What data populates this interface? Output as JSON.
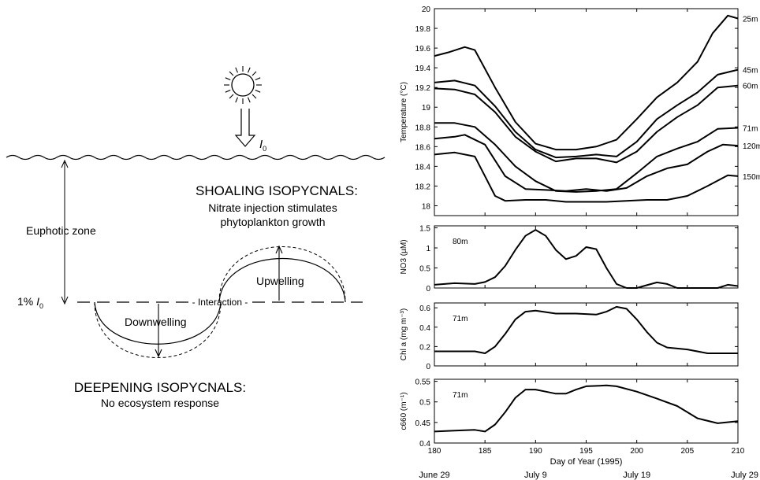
{
  "diagram": {
    "irradiance_symbol": "I",
    "irradiance_sub": "0",
    "euphotic_label": "Euphotic zone",
    "onepct_prefix": "1% ",
    "onepct_symbol": "I",
    "onepct_sub": "0",
    "shoaling_title": "SHOALING ISOPYCNALS:",
    "shoaling_line1": "Nitrate injection stimulates",
    "shoaling_line2": "phytoplankton growth",
    "upwelling": "Upwelling",
    "interaction": "Interaction",
    "downwelling": "Downwelling",
    "deepening_title": "DEEPENING ISOPYCNALS:",
    "deepening_line1": "No ecosystem response"
  },
  "chart_data": [
    {
      "type": "line",
      "ylabel": "Temperature (°C)",
      "ylim": [
        17.9,
        20.0
      ],
      "yticks": [
        "18",
        "18.2",
        "18.4",
        "18.6",
        "18.8",
        "19",
        "19.2",
        "19.4",
        "19.6",
        "19.8",
        "20"
      ],
      "xlim": [
        180,
        210
      ],
      "series": [
        {
          "name": "25m",
          "x": [
            180,
            181.5,
            183,
            184,
            186,
            188,
            190,
            192,
            194,
            196,
            198,
            200,
            202,
            204,
            206,
            207.5,
            209,
            210
          ],
          "y": [
            19.52,
            19.56,
            19.61,
            19.58,
            19.2,
            18.85,
            18.63,
            18.57,
            18.57,
            18.6,
            18.67,
            18.88,
            19.1,
            19.25,
            19.46,
            19.75,
            19.93,
            19.9
          ]
        },
        {
          "name": "45m",
          "x": [
            180,
            182,
            184,
            186,
            188,
            190,
            192,
            194,
            196,
            198,
            200,
            202,
            204,
            206,
            208,
            210
          ],
          "y": [
            19.25,
            19.27,
            19.22,
            19.01,
            18.75,
            18.57,
            18.49,
            18.5,
            18.52,
            18.5,
            18.65,
            18.88,
            19.02,
            19.15,
            19.33,
            19.38
          ]
        },
        {
          "name": "60m",
          "x": [
            180,
            182,
            184,
            186,
            188,
            190,
            192,
            194,
            196,
            198,
            200,
            202,
            204,
            206,
            208,
            210
          ],
          "y": [
            19.19,
            19.18,
            19.13,
            18.95,
            18.7,
            18.55,
            18.45,
            18.48,
            18.48,
            18.44,
            18.55,
            18.75,
            18.9,
            19.02,
            19.2,
            19.22
          ]
        },
        {
          "name": "71m",
          "x": [
            180,
            182,
            184,
            186,
            188,
            190,
            192,
            194,
            196,
            198,
            200,
            202,
            204,
            206,
            208,
            210
          ],
          "y": [
            18.84,
            18.84,
            18.8,
            18.62,
            18.4,
            18.25,
            18.15,
            18.14,
            18.15,
            18.17,
            18.33,
            18.5,
            18.58,
            18.65,
            18.78,
            18.79
          ]
        },
        {
          "name": "120m",
          "x": [
            180,
            182,
            183,
            185,
            187,
            189,
            191,
            193,
            195,
            197,
            199,
            201,
            203,
            205,
            207,
            208.5,
            210
          ],
          "y": [
            18.68,
            18.7,
            18.72,
            18.62,
            18.3,
            18.17,
            18.16,
            18.15,
            18.17,
            18.15,
            18.18,
            18.3,
            18.38,
            18.42,
            18.55,
            18.62,
            18.61
          ]
        },
        {
          "name": "150m",
          "x": [
            180,
            182,
            184,
            185,
            186,
            187,
            189,
            191,
            193,
            195,
            197,
            199,
            201,
            203,
            205,
            207,
            209,
            210
          ],
          "y": [
            18.52,
            18.54,
            18.5,
            18.3,
            18.1,
            18.05,
            18.06,
            18.06,
            18.04,
            18.04,
            18.04,
            18.05,
            18.06,
            18.06,
            18.1,
            18.2,
            18.31,
            18.3
          ]
        }
      ]
    },
    {
      "type": "line",
      "ylabel": "NO3 (µM)",
      "annotation": "80m",
      "ylim": [
        0,
        1.55
      ],
      "yticks": [
        "0",
        "0.5",
        "1",
        "1.5"
      ],
      "xlim": [
        180,
        210
      ],
      "series": [
        {
          "name": "80m",
          "x": [
            180,
            182,
            184,
            185,
            186,
            187,
            188,
            189,
            190,
            191,
            192,
            193,
            194,
            195,
            196,
            197,
            198,
            199,
            200,
            201,
            202,
            203,
            204,
            205,
            206,
            207,
            208,
            209,
            210
          ],
          "y": [
            0.08,
            0.12,
            0.1,
            0.15,
            0.27,
            0.55,
            0.95,
            1.3,
            1.45,
            1.3,
            0.95,
            0.72,
            0.8,
            1.02,
            0.97,
            0.5,
            0.1,
            0.0,
            0.0,
            0.07,
            0.14,
            0.1,
            0.0,
            0.0,
            0.0,
            0.0,
            0.0,
            0.08,
            0.05
          ]
        }
      ]
    },
    {
      "type": "line",
      "ylabel": "Chl a (mg m⁻³)",
      "annotation": "71m",
      "ylim": [
        0,
        0.65
      ],
      "yticks": [
        "0",
        "0.2",
        "0.4",
        "0.6"
      ],
      "xlim": [
        180,
        210
      ],
      "series": [
        {
          "name": "71m",
          "x": [
            180,
            182,
            184,
            185,
            186,
            187,
            188,
            189,
            190,
            192,
            194,
            196,
            197,
            198,
            199,
            200,
            201,
            202,
            203,
            205,
            207,
            210
          ],
          "y": [
            0.15,
            0.15,
            0.15,
            0.13,
            0.2,
            0.33,
            0.48,
            0.56,
            0.57,
            0.54,
            0.54,
            0.53,
            0.56,
            0.61,
            0.59,
            0.48,
            0.35,
            0.24,
            0.19,
            0.17,
            0.13,
            0.13
          ]
        }
      ]
    },
    {
      "type": "line",
      "ylabel": "c660 (m⁻¹)",
      "annotation": "71m",
      "ylim": [
        0.4,
        0.555
      ],
      "yticks": [
        "0.4",
        "0.45",
        "0.5",
        "0.55"
      ],
      "xlim": [
        180,
        210
      ],
      "xticks": [
        "180",
        "185",
        "190",
        "195",
        "200",
        "205",
        "210"
      ],
      "xlabel": "Day of Year (1995)",
      "date_ticks": [
        "June 29",
        "July 9",
        "July 19",
        "July 29"
      ],
      "series": [
        {
          "name": "71m",
          "x": [
            180,
            182,
            184,
            185,
            186,
            187,
            188,
            189,
            190,
            191,
            192,
            193,
            194,
            195,
            197,
            198,
            200,
            202,
            204,
            206,
            208,
            210
          ],
          "y": [
            0.428,
            0.43,
            0.432,
            0.428,
            0.445,
            0.475,
            0.51,
            0.53,
            0.53,
            0.525,
            0.52,
            0.52,
            0.53,
            0.538,
            0.54,
            0.538,
            0.525,
            0.508,
            0.49,
            0.46,
            0.448,
            0.453
          ]
        }
      ]
    }
  ]
}
